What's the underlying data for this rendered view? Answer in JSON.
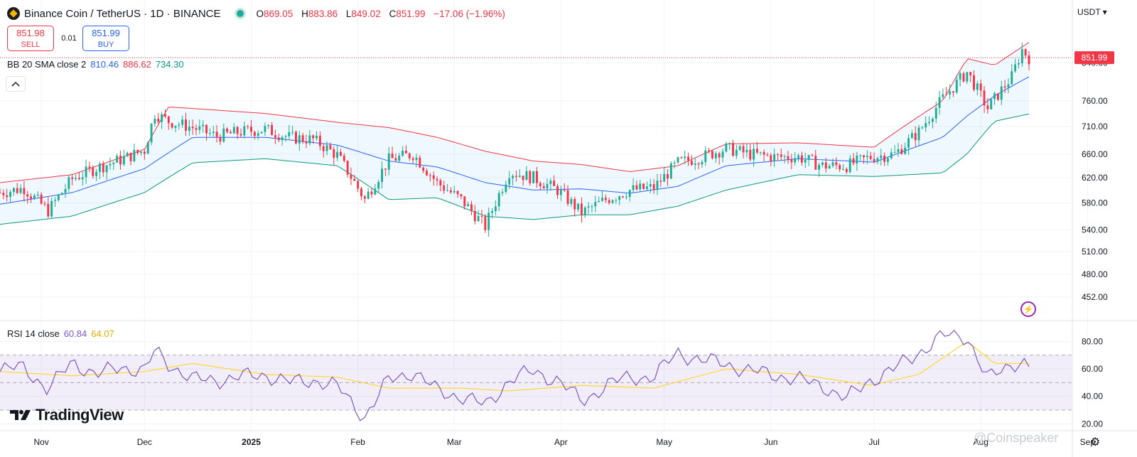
{
  "header": {
    "symbol_title": "Binance Coin / TetherUS · 1D · BINANCE",
    "ohlc": [
      {
        "key": "O",
        "value": "869.05"
      },
      {
        "key": "H",
        "value": "883.86"
      },
      {
        "key": "L",
        "value": "849.02"
      },
      {
        "key": "C",
        "value": "851.99"
      },
      {
        "key": "",
        "value": "−17.06 (−1.96%)"
      }
    ]
  },
  "trade": {
    "sell_price": "851.98",
    "sell_label": "SELL",
    "spread": "0.01",
    "buy_price": "851.99",
    "buy_label": "BUY"
  },
  "bb_legend": {
    "name": "BB 20 SMA close 2",
    "basis": "810.46",
    "upper": "886.62",
    "lower": "734.30"
  },
  "rsi_legend": {
    "name": "RSI 14 close",
    "rsi": "60.84",
    "ma": "64.07"
  },
  "currency": "USDT",
  "last_price_tag": "851.99",
  "price_axis_labels": [
    "840.00",
    "760.00",
    "710.00",
    "660.00",
    "620.00",
    "580.00",
    "540.00",
    "510.00",
    "480.00",
    "452.00"
  ],
  "rsi_axis_labels": [
    "80.00",
    "60.00",
    "40.00",
    "20.00"
  ],
  "time_axis_labels": [
    "Nov",
    "Dec",
    "2025",
    "Feb",
    "Mar",
    "Apr",
    "May",
    "Jun",
    "Jul",
    "Aug",
    "Sep"
  ],
  "brand": "TradingView",
  "watermark": "@Coinspeaker",
  "colors": {
    "up": "#22ab94",
    "down": "#f23645",
    "bb_basis": "#2962ff",
    "bb_upper": "#f23645",
    "bb_lower": "#089981",
    "rsi_line": "#7e57c2",
    "rsi_ma": "#fdd835"
  },
  "icons": {
    "chevron": "chevron-up-icon",
    "bolt": "lightning-icon",
    "settings": "gear-icon",
    "live": "market-open-dot-icon"
  },
  "chart_data": {
    "type": "candlestick",
    "title": "Binance Coin / TetherUS · 1D · BINANCE",
    "ylim": [
      452,
      900
    ],
    "y_scale": "log",
    "indicators": [
      "Bollinger Bands 20 SMA close 2",
      "RSI 14 close"
    ],
    "x_range": [
      "2024-10-20",
      "2025-08-15"
    ],
    "rsi_range": [
      15,
      90
    ],
    "rsi_bands": [
      30,
      50,
      70
    ],
    "close_series": [
      [
        "2024-10-20",
        596
      ],
      [
        "2024-10-27",
        603
      ],
      [
        "2024-11-03",
        568
      ],
      [
        "2024-11-10",
        618
      ],
      [
        "2024-11-17",
        636
      ],
      [
        "2024-11-24",
        650
      ],
      [
        "2024-12-01",
        667
      ],
      [
        "2024-12-04",
        735
      ],
      [
        "2024-12-08",
        720
      ],
      [
        "2024-12-15",
        708
      ],
      [
        "2024-12-22",
        692
      ],
      [
        "2024-12-29",
        700
      ],
      [
        "2025-01-05",
        705
      ],
      [
        "2025-01-12",
        690
      ],
      [
        "2025-01-19",
        686
      ],
      [
        "2025-01-26",
        658
      ],
      [
        "2025-02-03",
        585
      ],
      [
        "2025-02-10",
        650
      ],
      [
        "2025-02-17",
        660
      ],
      [
        "2025-02-24",
        612
      ],
      [
        "2025-03-03",
        585
      ],
      [
        "2025-03-10",
        545
      ],
      [
        "2025-03-17",
        630
      ],
      [
        "2025-03-24",
        620
      ],
      [
        "2025-03-31",
        600
      ],
      [
        "2025-04-07",
        565
      ],
      [
        "2025-04-14",
        585
      ],
      [
        "2025-04-21",
        600
      ],
      [
        "2025-04-28",
        604
      ],
      [
        "2025-05-05",
        645
      ],
      [
        "2025-05-12",
        655
      ],
      [
        "2025-05-19",
        670
      ],
      [
        "2025-05-26",
        660
      ],
      [
        "2025-06-02",
        655
      ],
      [
        "2025-06-09",
        655
      ],
      [
        "2025-06-16",
        640
      ],
      [
        "2025-06-23",
        640
      ],
      [
        "2025-06-30",
        655
      ],
      [
        "2025-07-07",
        660
      ],
      [
        "2025-07-14",
        700
      ],
      [
        "2025-07-21",
        765
      ],
      [
        "2025-07-28",
        820
      ],
      [
        "2025-08-03",
        745
      ],
      [
        "2025-08-10",
        810
      ],
      [
        "2025-08-13",
        870
      ],
      [
        "2025-08-15",
        852
      ]
    ],
    "bb_upper": [
      [
        "2024-10-20",
        612
      ],
      [
        "2024-11-10",
        625
      ],
      [
        "2024-12-01",
        668
      ],
      [
        "2024-12-08",
        748
      ],
      [
        "2025-01-05",
        735
      ],
      [
        "2025-01-26",
        718
      ],
      [
        "2025-02-10",
        708
      ],
      [
        "2025-02-24",
        690
      ],
      [
        "2025-03-10",
        665
      ],
      [
        "2025-03-24",
        648
      ],
      [
        "2025-04-07",
        642
      ],
      [
        "2025-04-21",
        630
      ],
      [
        "2025-05-05",
        640
      ],
      [
        "2025-05-19",
        678
      ],
      [
        "2025-06-09",
        680
      ],
      [
        "2025-07-01",
        672
      ],
      [
        "2025-07-21",
        760
      ],
      [
        "2025-07-28",
        850
      ],
      [
        "2025-08-05",
        835
      ],
      [
        "2025-08-15",
        887
      ]
    ],
    "bb_basis": [
      [
        "2024-10-20",
        578
      ],
      [
        "2024-11-10",
        596
      ],
      [
        "2024-12-01",
        635
      ],
      [
        "2024-12-15",
        690
      ],
      [
        "2025-01-05",
        690
      ],
      [
        "2025-01-26",
        676
      ],
      [
        "2025-02-10",
        648
      ],
      [
        "2025-02-24",
        638
      ],
      [
        "2025-03-10",
        612
      ],
      [
        "2025-03-24",
        600
      ],
      [
        "2025-04-07",
        602
      ],
      [
        "2025-04-21",
        595
      ],
      [
        "2025-05-05",
        606
      ],
      [
        "2025-05-19",
        640
      ],
      [
        "2025-06-09",
        652
      ],
      [
        "2025-07-01",
        646
      ],
      [
        "2025-07-21",
        690
      ],
      [
        "2025-07-28",
        730
      ],
      [
        "2025-08-05",
        770
      ],
      [
        "2025-08-15",
        810
      ]
    ],
    "bb_lower": [
      [
        "2024-10-20",
        548
      ],
      [
        "2024-11-10",
        560
      ],
      [
        "2024-12-01",
        596
      ],
      [
        "2024-12-15",
        645
      ],
      [
        "2025-01-05",
        652
      ],
      [
        "2025-01-26",
        640
      ],
      [
        "2025-02-10",
        585
      ],
      [
        "2025-02-24",
        588
      ],
      [
        "2025-03-10",
        560
      ],
      [
        "2025-03-24",
        555
      ],
      [
        "2025-04-07",
        562
      ],
      [
        "2025-04-21",
        562
      ],
      [
        "2025-05-05",
        575
      ],
      [
        "2025-05-19",
        600
      ],
      [
        "2025-06-09",
        625
      ],
      [
        "2025-07-01",
        622
      ],
      [
        "2025-07-21",
        628
      ],
      [
        "2025-07-28",
        660
      ],
      [
        "2025-08-05",
        720
      ],
      [
        "2025-08-15",
        734
      ]
    ],
    "rsi_series": [
      [
        "2024-10-20",
        58
      ],
      [
        "2024-10-27",
        62
      ],
      [
        "2024-11-03",
        44
      ],
      [
        "2024-11-10",
        66
      ],
      [
        "2024-11-17",
        55
      ],
      [
        "2024-11-24",
        62
      ],
      [
        "2024-12-01",
        58
      ],
      [
        "2024-12-04",
        73
      ],
      [
        "2024-12-08",
        64
      ],
      [
        "2024-12-15",
        52
      ],
      [
        "2024-12-22",
        52
      ],
      [
        "2024-12-29",
        54
      ],
      [
        "2025-01-05",
        56
      ],
      [
        "2025-01-12",
        50
      ],
      [
        "2025-01-19",
        52
      ],
      [
        "2025-01-26",
        47
      ],
      [
        "2025-02-03",
        25
      ],
      [
        "2025-02-10",
        52
      ],
      [
        "2025-02-17",
        58
      ],
      [
        "2025-02-24",
        44
      ],
      [
        "2025-03-03",
        40
      ],
      [
        "2025-03-10",
        33
      ],
      [
        "2025-03-17",
        52
      ],
      [
        "2025-03-24",
        58
      ],
      [
        "2025-03-31",
        52
      ],
      [
        "2025-04-07",
        36
      ],
      [
        "2025-04-14",
        48
      ],
      [
        "2025-04-21",
        54
      ],
      [
        "2025-04-28",
        54
      ],
      [
        "2025-05-05",
        72
      ],
      [
        "2025-05-12",
        66
      ],
      [
        "2025-05-19",
        64
      ],
      [
        "2025-05-26",
        58
      ],
      [
        "2025-06-02",
        56
      ],
      [
        "2025-06-09",
        52
      ],
      [
        "2025-06-16",
        48
      ],
      [
        "2025-06-23",
        38
      ],
      [
        "2025-06-30",
        52
      ],
      [
        "2025-07-07",
        60
      ],
      [
        "2025-07-14",
        72
      ],
      [
        "2025-07-21",
        84
      ],
      [
        "2025-07-28",
        84
      ],
      [
        "2025-08-03",
        52
      ],
      [
        "2025-08-10",
        64
      ],
      [
        "2025-08-13",
        66
      ],
      [
        "2025-08-15",
        61
      ]
    ],
    "rsi_ma_series": [
      [
        "2024-10-20",
        58
      ],
      [
        "2024-11-10",
        55
      ],
      [
        "2024-12-01",
        58
      ],
      [
        "2024-12-15",
        64
      ],
      [
        "2025-01-05",
        56
      ],
      [
        "2025-01-26",
        54
      ],
      [
        "2025-02-10",
        46
      ],
      [
        "2025-03-03",
        46
      ],
      [
        "2025-03-17",
        44
      ],
      [
        "2025-04-07",
        48
      ],
      [
        "2025-04-28",
        46
      ],
      [
        "2025-05-19",
        60
      ],
      [
        "2025-06-09",
        56
      ],
      [
        "2025-06-30",
        48
      ],
      [
        "2025-07-14",
        56
      ],
      [
        "2025-07-28",
        80
      ],
      [
        "2025-08-05",
        64
      ],
      [
        "2025-08-15",
        64
      ]
    ]
  }
}
